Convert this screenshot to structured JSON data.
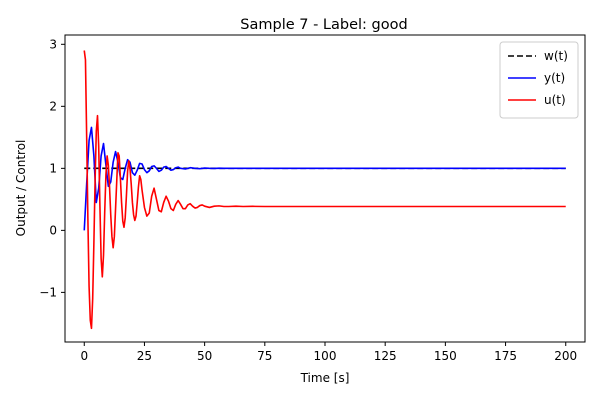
{
  "chart_data": {
    "type": "line",
    "title": "Sample 7 - Label: good",
    "xlabel": "Time [s]",
    "ylabel": "Output / Control",
    "xlim": [
      -8,
      208
    ],
    "ylim": [
      -1.8,
      3.15
    ],
    "xticks": [
      0,
      25,
      50,
      75,
      100,
      125,
      150,
      175,
      200
    ],
    "yticks": [
      -1,
      0,
      1,
      2,
      3
    ],
    "ytick_labels": [
      "−1",
      "0",
      "1",
      "2",
      "3"
    ],
    "grid": false,
    "legend_position": "top-right",
    "series": [
      {
        "name": "w(t)",
        "color": "#000000",
        "dash": "dashed",
        "x": [
          0,
          200
        ],
        "y": [
          1,
          1
        ]
      },
      {
        "name": "y(t)",
        "color": "#0000ff",
        "dash": "solid",
        "x": [
          0,
          1,
          2,
          3,
          4,
          5,
          6,
          7,
          8,
          9,
          10,
          11,
          12,
          13,
          14,
          15,
          16,
          17,
          18,
          19,
          20,
          21,
          22,
          23,
          24,
          25,
          26,
          27,
          28,
          29,
          30,
          31,
          32,
          33,
          34,
          35,
          36,
          37,
          38,
          39,
          40,
          42,
          44,
          46,
          48,
          50,
          52,
          54,
          56,
          58,
          60,
          65,
          70,
          75,
          80,
          100,
          150,
          200
        ],
        "y": [
          0.0,
          0.75,
          1.45,
          1.66,
          1.2,
          0.45,
          0.68,
          1.2,
          1.4,
          1.05,
          0.71,
          0.78,
          1.1,
          1.27,
          1.1,
          0.85,
          0.82,
          1.0,
          1.14,
          1.1,
          0.93,
          0.89,
          0.97,
          1.08,
          1.07,
          0.98,
          0.93,
          0.96,
          1.03,
          1.04,
          1.0,
          0.95,
          0.97,
          1.02,
          1.03,
          1.0,
          0.97,
          0.98,
          1.01,
          1.02,
          1.0,
          0.99,
          1.01,
          1.0,
          0.995,
          1.005,
          1.0,
          0.998,
          1.002,
          1.0,
          1.0,
          1.0,
          1.0,
          1.0,
          1.0,
          1.0,
          1.0,
          1.0
        ]
      },
      {
        "name": "u(t)",
        "color": "#ff0000",
        "dash": "solid",
        "x": [
          0,
          0.5,
          1,
          1.5,
          2,
          2.5,
          3,
          3.5,
          4,
          4.5,
          5,
          5.5,
          6,
          6.5,
          7,
          7.5,
          8,
          8.5,
          9,
          9.5,
          10,
          10.5,
          11,
          11.5,
          12,
          12.5,
          13,
          13.5,
          14,
          14.5,
          15,
          15.5,
          16,
          16.5,
          17,
          17.5,
          18,
          18.5,
          19,
          19.5,
          20,
          20.5,
          21,
          21.5,
          22,
          22.5,
          23,
          23.5,
          24,
          25,
          26,
          27,
          28,
          29,
          30,
          31,
          32,
          33,
          34,
          35,
          36,
          37,
          38,
          39,
          40,
          41,
          42,
          43,
          44,
          45,
          46,
          47,
          48,
          49,
          50,
          52,
          54,
          56,
          58,
          60,
          63,
          66,
          70,
          75,
          80,
          100,
          150,
          200
        ],
        "y": [
          2.9,
          2.75,
          1.5,
          0.2,
          -0.9,
          -1.45,
          -1.58,
          -1.1,
          -0.2,
          0.8,
          1.6,
          1.85,
          1.35,
          0.4,
          -0.45,
          -0.75,
          -0.4,
          0.3,
          0.9,
          1.2,
          1.05,
          0.7,
          0.25,
          -0.1,
          -0.28,
          -0.1,
          0.35,
          0.8,
          1.25,
          1.2,
          0.85,
          0.45,
          0.15,
          0.05,
          0.2,
          0.55,
          0.95,
          1.12,
          1.0,
          0.75,
          0.45,
          0.25,
          0.16,
          0.23,
          0.45,
          0.7,
          0.88,
          0.82,
          0.65,
          0.37,
          0.23,
          0.28,
          0.55,
          0.68,
          0.5,
          0.32,
          0.3,
          0.45,
          0.55,
          0.47,
          0.35,
          0.32,
          0.42,
          0.48,
          0.42,
          0.35,
          0.35,
          0.41,
          0.43,
          0.39,
          0.36,
          0.37,
          0.4,
          0.41,
          0.39,
          0.37,
          0.39,
          0.395,
          0.385,
          0.385,
          0.39,
          0.385,
          0.387,
          0.385,
          0.385,
          0.385,
          0.385,
          0.385
        ]
      }
    ]
  }
}
